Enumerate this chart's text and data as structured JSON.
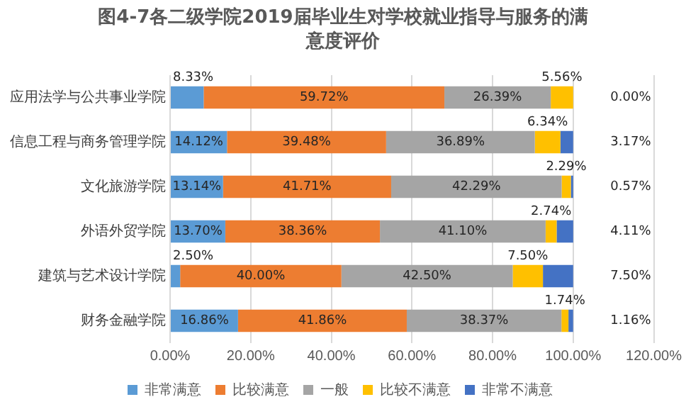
{
  "chart_data": {
    "type": "bar",
    "orientation": "horizontal",
    "stacked": true,
    "title": "图4-7各二级学院2019届毕业生对学校就业指导与服务的满意度评价",
    "categories": [
      "应用法学与公共事业学院",
      "信息工程与商务管理学院",
      "文化旅游学院",
      "外语外贸学院",
      "建筑与艺术设计学院",
      "财务金融学院"
    ],
    "series": [
      {
        "name": "非常满意",
        "color": "#5b9bd5",
        "values": [
          8.33,
          14.12,
          13.14,
          13.7,
          2.5,
          16.86
        ],
        "value_labels": [
          "8.33%",
          "14.12%",
          "13.14%",
          "13.70%",
          "2.50%",
          "16.86%"
        ]
      },
      {
        "name": "比较满意",
        "color": "#ed7d31",
        "values": [
          59.72,
          39.48,
          41.71,
          38.36,
          40.0,
          41.86
        ],
        "value_labels": [
          "59.72%",
          "39.48%",
          "41.71%",
          "38.36%",
          "40.00%",
          "41.86%"
        ]
      },
      {
        "name": "一般",
        "color": "#a5a5a5",
        "values": [
          26.39,
          36.89,
          42.29,
          41.1,
          42.5,
          38.37
        ],
        "value_labels": [
          "26.39%",
          "36.89%",
          "42.29%",
          "41.10%",
          "42.50%",
          "38.37%"
        ]
      },
      {
        "name": "比较不满意",
        "color": "#ffc000",
        "values": [
          5.56,
          6.34,
          2.29,
          2.74,
          7.5,
          1.74
        ],
        "value_labels": [
          "5.56%",
          "6.34%",
          "2.29%",
          "2.74%",
          "7.50%",
          "1.74%"
        ]
      },
      {
        "name": "非常不满意",
        "color": "#4472c4",
        "values": [
          0.0,
          3.17,
          0.57,
          4.11,
          7.5,
          1.16
        ],
        "value_labels": [
          "0.00%",
          "3.17%",
          "0.57%",
          "4.11%",
          "7.50%",
          "1.16%"
        ]
      }
    ],
    "xlim": [
      0,
      120
    ],
    "xticks": [
      {
        "value": 0,
        "label": "0.00%"
      },
      {
        "value": 20,
        "label": "20.00%"
      },
      {
        "value": 40,
        "label": "40.00%"
      },
      {
        "value": 60,
        "label": "60.00%"
      },
      {
        "value": 80,
        "label": "80.00%"
      },
      {
        "value": 100,
        "label": "100.00%"
      },
      {
        "value": 120,
        "label": "120.00%"
      }
    ],
    "grid": "x",
    "legend": "bottom"
  }
}
